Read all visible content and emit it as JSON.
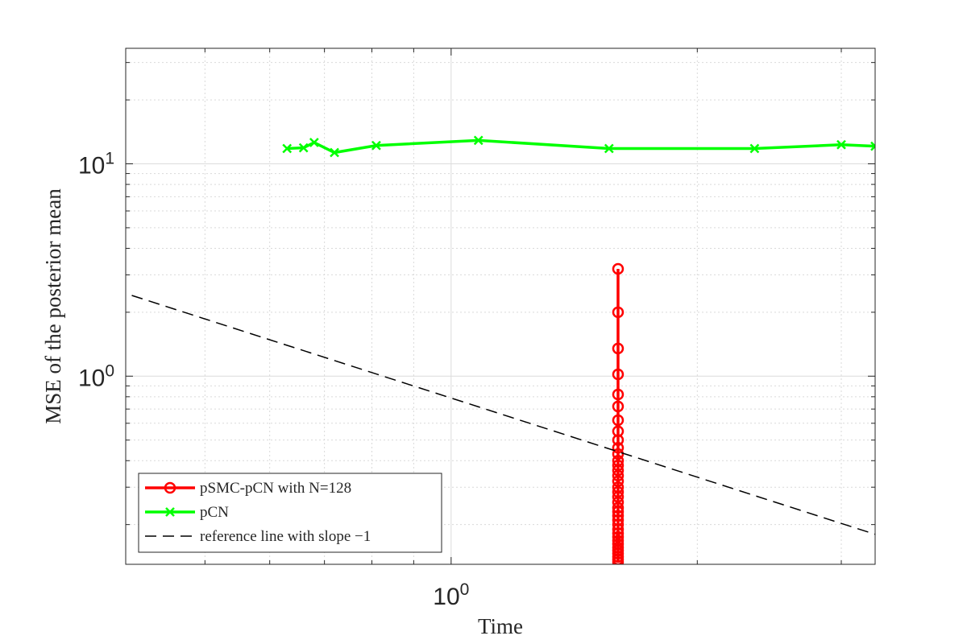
{
  "chart_data": {
    "type": "line",
    "xlabel": "Time",
    "ylabel": "MSE of the posterior mean",
    "xscale": "log",
    "yscale": "log",
    "xlim": [
      0.4,
      3.3
    ],
    "ylim": [
      0.13,
      35
    ],
    "xticks": [
      {
        "base": "10",
        "exp": "0",
        "value": 1
      }
    ],
    "yticks": [
      {
        "base": "10",
        "exp": "0",
        "value": 1
      },
      {
        "base": "10",
        "exp": "1",
        "value": 10
      }
    ],
    "grid": true,
    "legend_position": "bottom-left",
    "series": [
      {
        "name": "pSMC-pCN with N=128",
        "color": "#ff0000",
        "marker": "circle",
        "line": "solid",
        "x": [
          1.6,
          1.6,
          1.6,
          1.6,
          1.6,
          1.6,
          1.6,
          1.6,
          1.6,
          1.6,
          1.6,
          1.6,
          1.6,
          1.6,
          1.6,
          1.6,
          1.6,
          1.6,
          1.6,
          1.6,
          1.6,
          1.6,
          1.6,
          1.6,
          1.6,
          1.6,
          1.6,
          1.6,
          1.6,
          1.6,
          1.6,
          1.6,
          1.6,
          1.6,
          1.6,
          1.6
        ],
        "y": [
          3.2,
          2.0,
          1.35,
          1.02,
          0.82,
          0.72,
          0.62,
          0.55,
          0.5,
          0.46,
          0.43,
          0.4,
          0.38,
          0.36,
          0.34,
          0.32,
          0.3,
          0.285,
          0.27,
          0.255,
          0.24,
          0.23,
          0.22,
          0.21,
          0.2,
          0.19,
          0.182,
          0.175,
          0.168,
          0.162,
          0.156,
          0.151,
          0.146,
          0.141,
          0.137,
          0.133
        ]
      },
      {
        "name": "pCN",
        "color": "#00ff00",
        "marker": "x",
        "line": "solid",
        "x": [
          0.63,
          0.66,
          0.68,
          0.72,
          0.81,
          1.08,
          1.56,
          2.35,
          3.0,
          3.3
        ],
        "y": [
          11.8,
          11.9,
          12.6,
          11.3,
          12.2,
          12.9,
          11.8,
          11.8,
          12.3,
          12.1
        ]
      },
      {
        "name": "reference line with slope −1",
        "color": "#000000",
        "marker": "none",
        "line": "dashed",
        "x": [
          0.37,
          3.3
        ],
        "y": [
          2.7,
          0.18
        ]
      }
    ]
  }
}
